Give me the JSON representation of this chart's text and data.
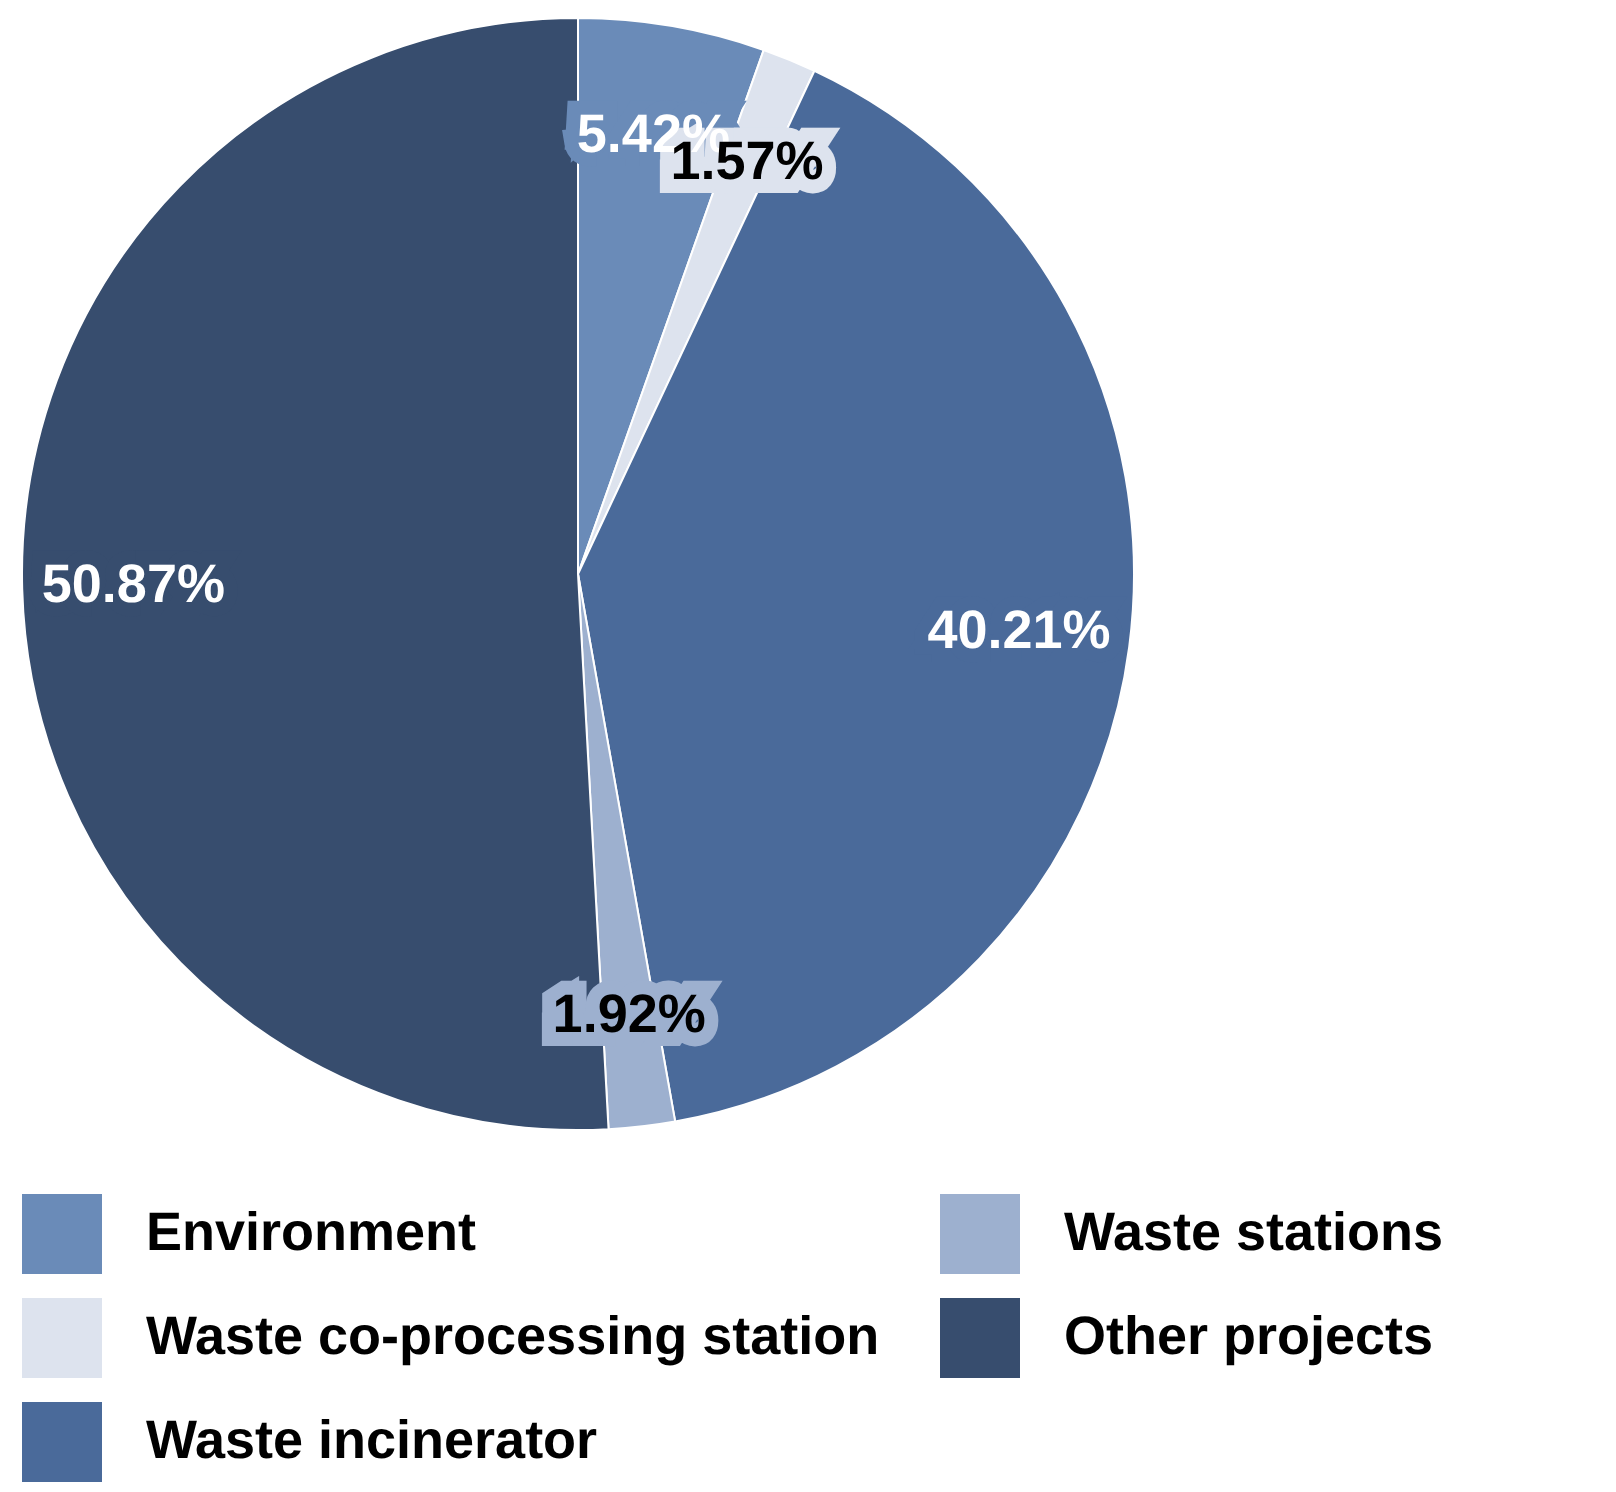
{
  "chart_data": {
    "type": "pie",
    "categories": [
      "Environment",
      "Waste co-processing station",
      "Waste incinerator",
      "Waste stations",
      "Other projects"
    ],
    "values": [
      5.42,
      1.57,
      40.21,
      1.92,
      50.87
    ],
    "colors": [
      "#6a8bb8",
      "#dde3ee",
      "#4a6a9a",
      "#9db0cf",
      "#374d6e"
    ],
    "value_labels": [
      "5.42%",
      "1.57%",
      "40.21%",
      "1.92%",
      "50.87%"
    ],
    "legend": "bottom"
  }
}
